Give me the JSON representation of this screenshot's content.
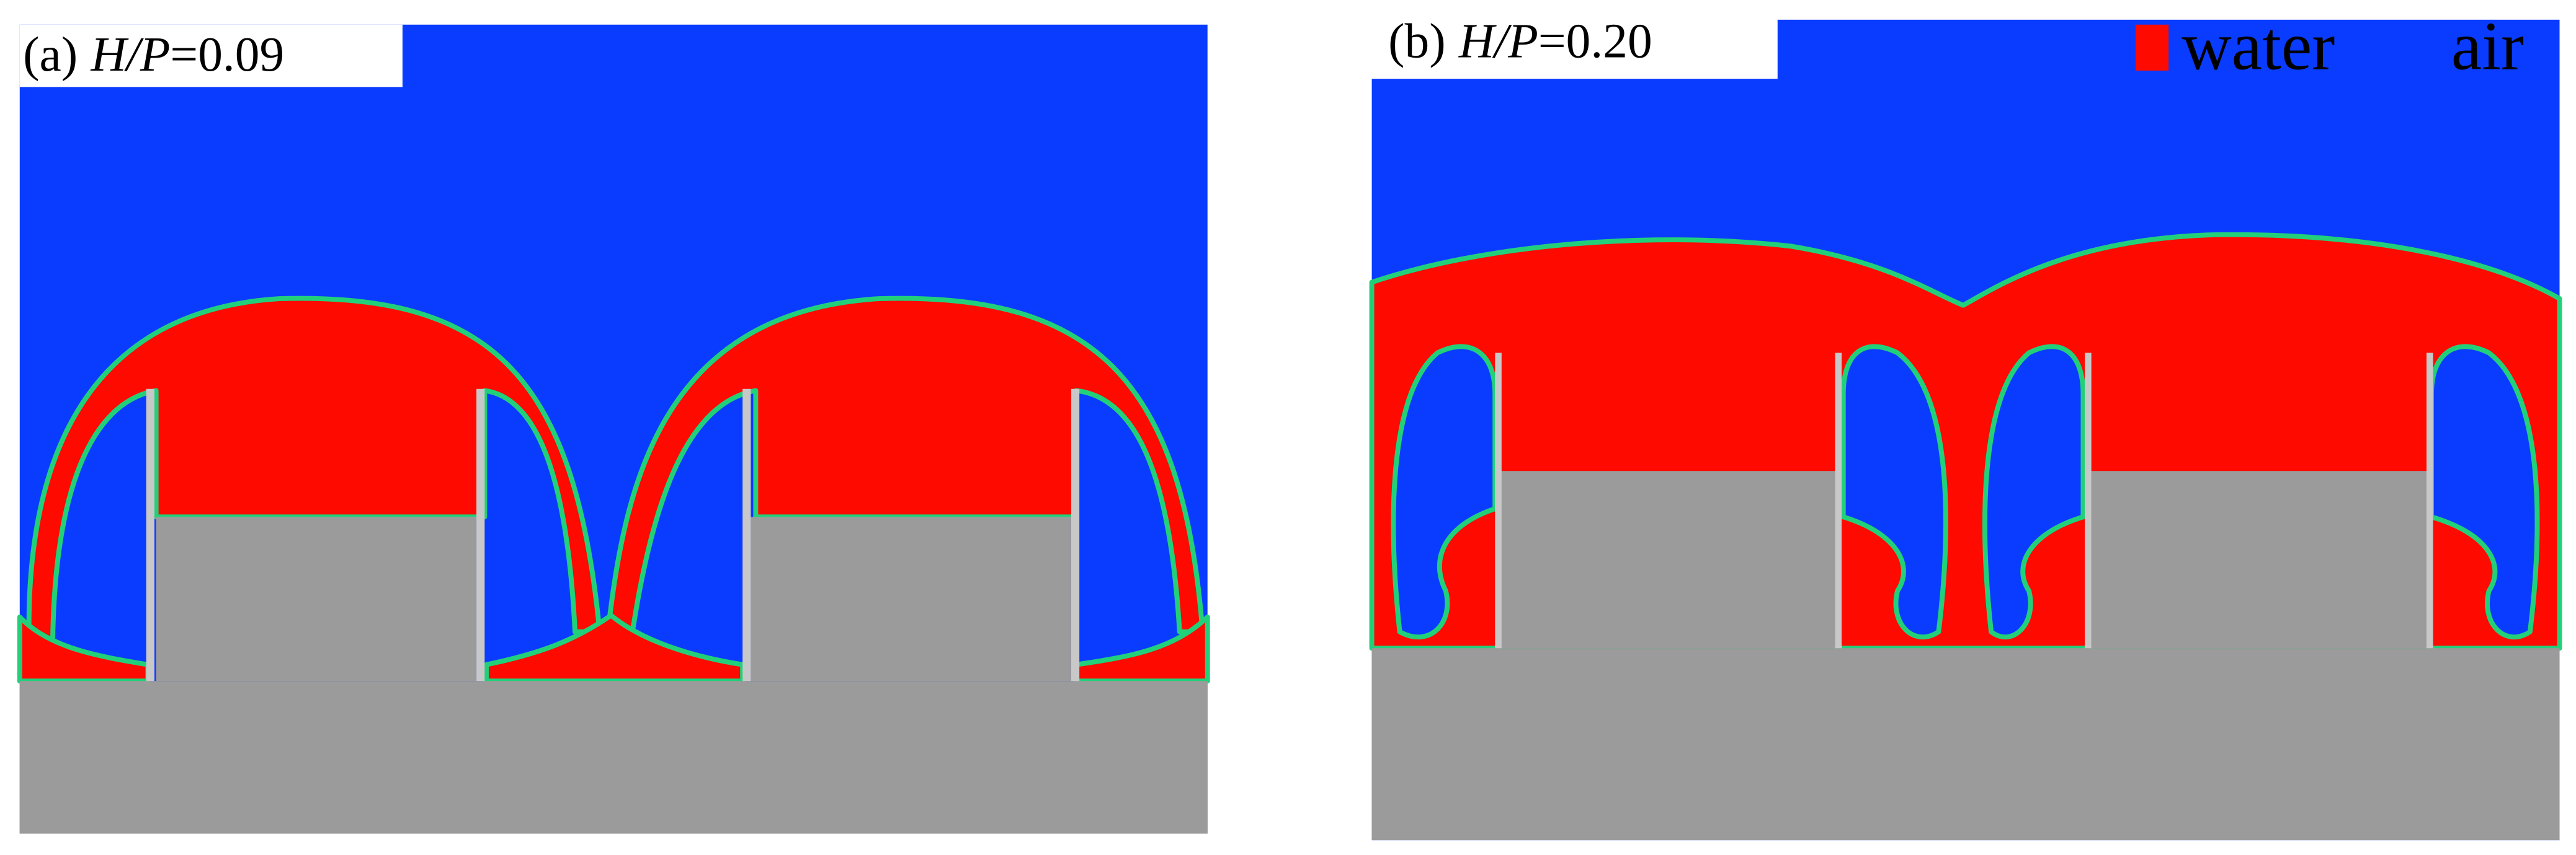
{
  "panels": [
    {
      "label": "(a)",
      "parameter": "H/P",
      "value": "=0.09"
    },
    {
      "label": "(b)",
      "parameter": "H/P",
      "value": "=0.20"
    }
  ],
  "legend": [
    {
      "name": "water",
      "color": "#ff0a00"
    },
    {
      "name": "air",
      "color": "#0a3cff"
    }
  ]
}
